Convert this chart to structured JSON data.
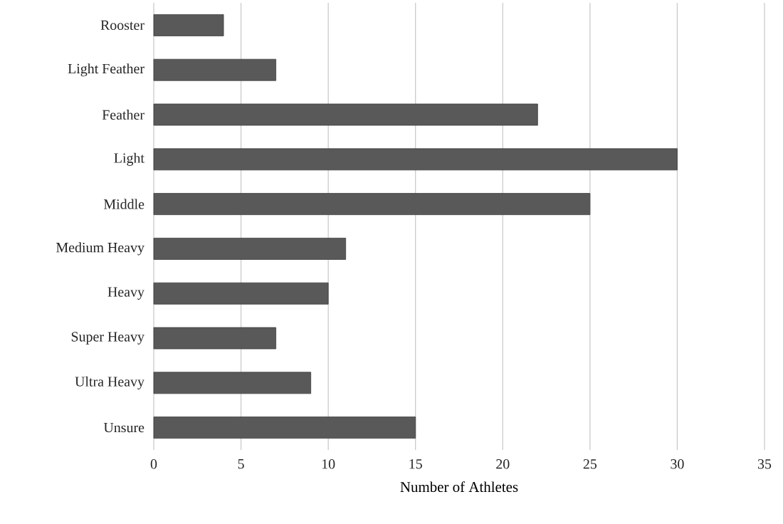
{
  "chart_data": {
    "type": "bar",
    "orientation": "horizontal",
    "xlabel": "Number of Athletes",
    "categories": [
      "Rooster",
      "Light Feather",
      "Feather",
      "Light",
      "Middle",
      "Medium Heavy",
      "Heavy",
      "Super Heavy",
      "Ultra Heavy",
      "Unsure"
    ],
    "values": [
      4,
      7,
      22,
      30,
      25,
      11,
      10,
      7,
      9,
      15
    ],
    "color": "#595959",
    "xlim": [
      0,
      35
    ],
    "xticks": [
      0,
      5,
      10,
      15,
      20,
      25,
      30,
      35
    ],
    "grid": "x"
  }
}
